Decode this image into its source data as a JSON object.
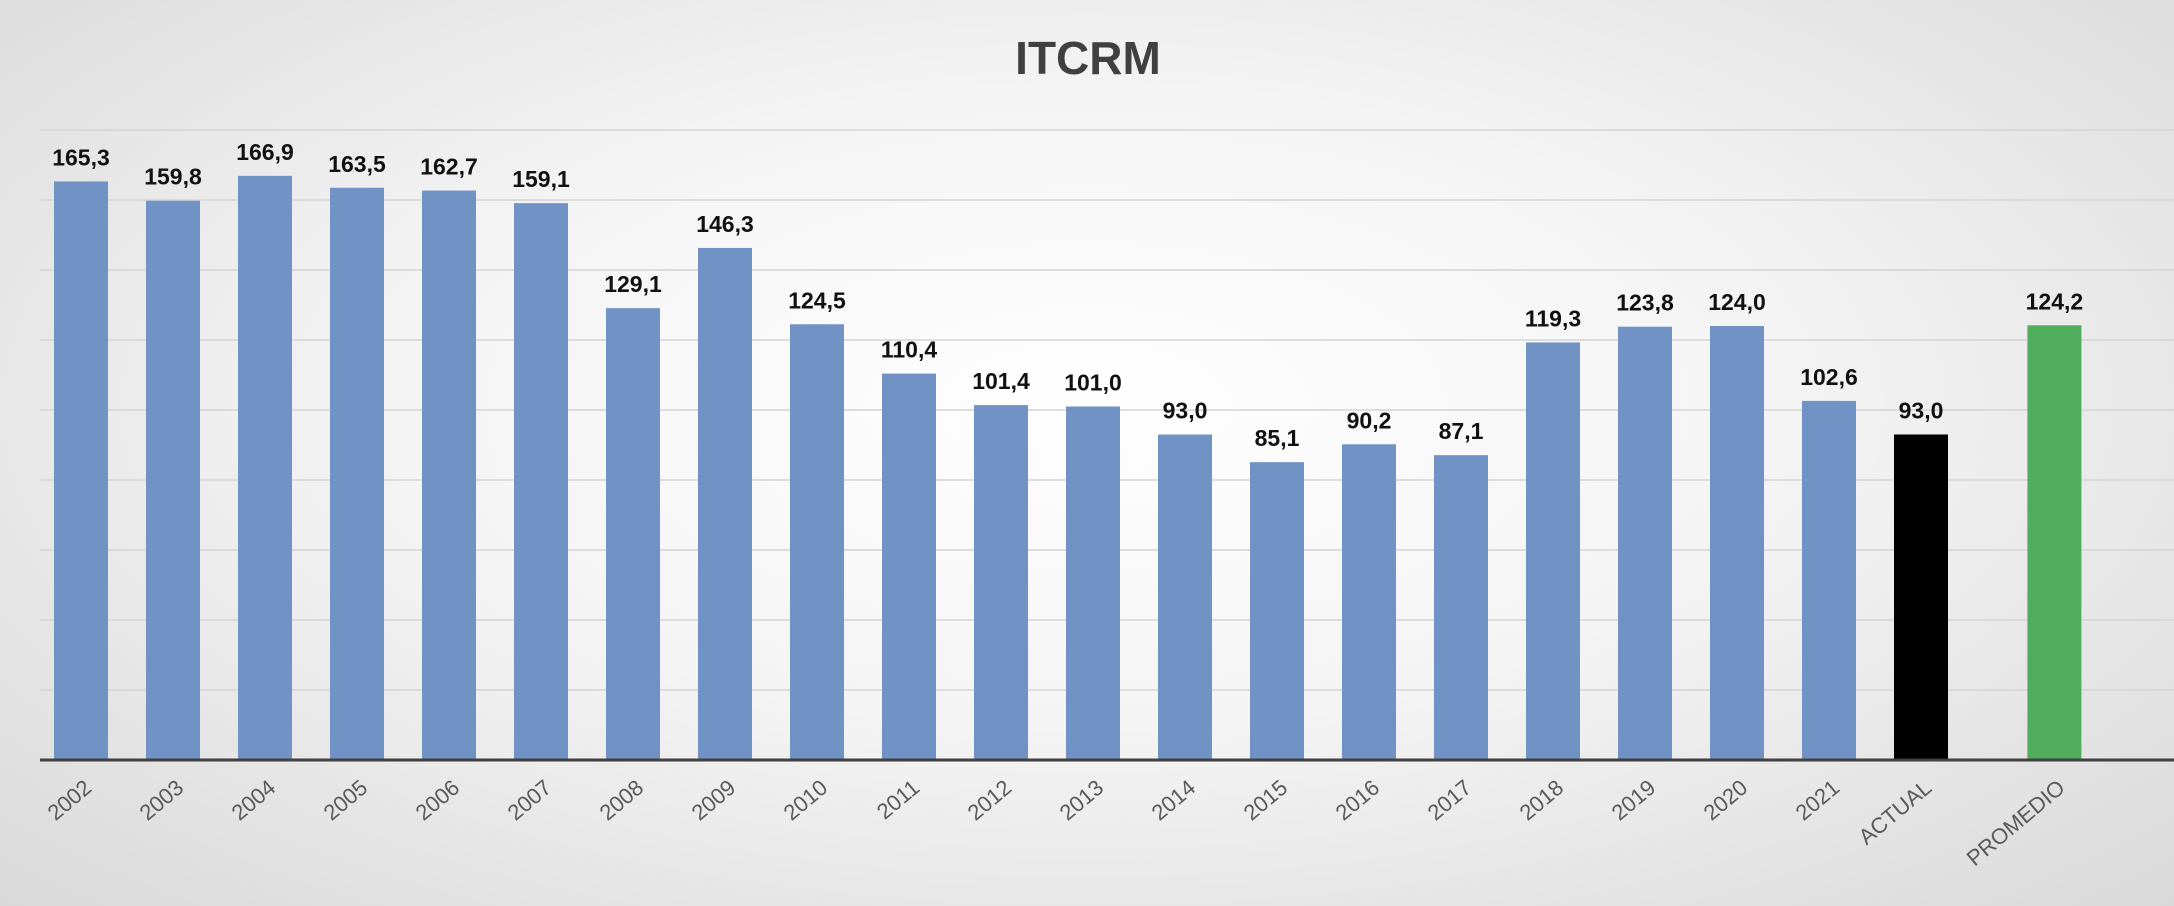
{
  "chart_data": {
    "type": "bar",
    "title": "ITCRM",
    "categories": [
      "2002",
      "2003",
      "2004",
      "2005",
      "2006",
      "2007",
      "2008",
      "2009",
      "2010",
      "2011",
      "2012",
      "2013",
      "2014",
      "2015",
      "2016",
      "2017",
      "2018",
      "2019",
      "2020",
      "2021",
      "ACTUAL",
      "PROMEDIO"
    ],
    "values": [
      165.3,
      159.8,
      166.9,
      163.5,
      162.7,
      159.1,
      129.1,
      146.3,
      124.5,
      110.4,
      101.4,
      101.0,
      93.0,
      85.1,
      90.2,
      87.1,
      119.3,
      123.8,
      124.0,
      102.6,
      93.0,
      124.2
    ],
    "value_labels": [
      "165,3",
      "159,8",
      "166,9",
      "163,5",
      "162,7",
      "159,1",
      "129,1",
      "146,3",
      "124,5",
      "110,4",
      "101,4",
      "101,0",
      "93,0",
      "85,1",
      "90,2",
      "87,1",
      "119,3",
      "123,8",
      "124,0",
      "102,6",
      "93,0",
      "124,2"
    ],
    "ylim": [
      0,
      180
    ],
    "gridlines": true,
    "gridline_values": [
      20,
      40,
      60,
      80,
      100,
      120,
      140,
      160,
      180
    ],
    "legend": "none",
    "colors": {
      "default": "#7092c4",
      "ACTUAL": "#000000",
      "PROMEDIO": "#4fad5b"
    }
  }
}
